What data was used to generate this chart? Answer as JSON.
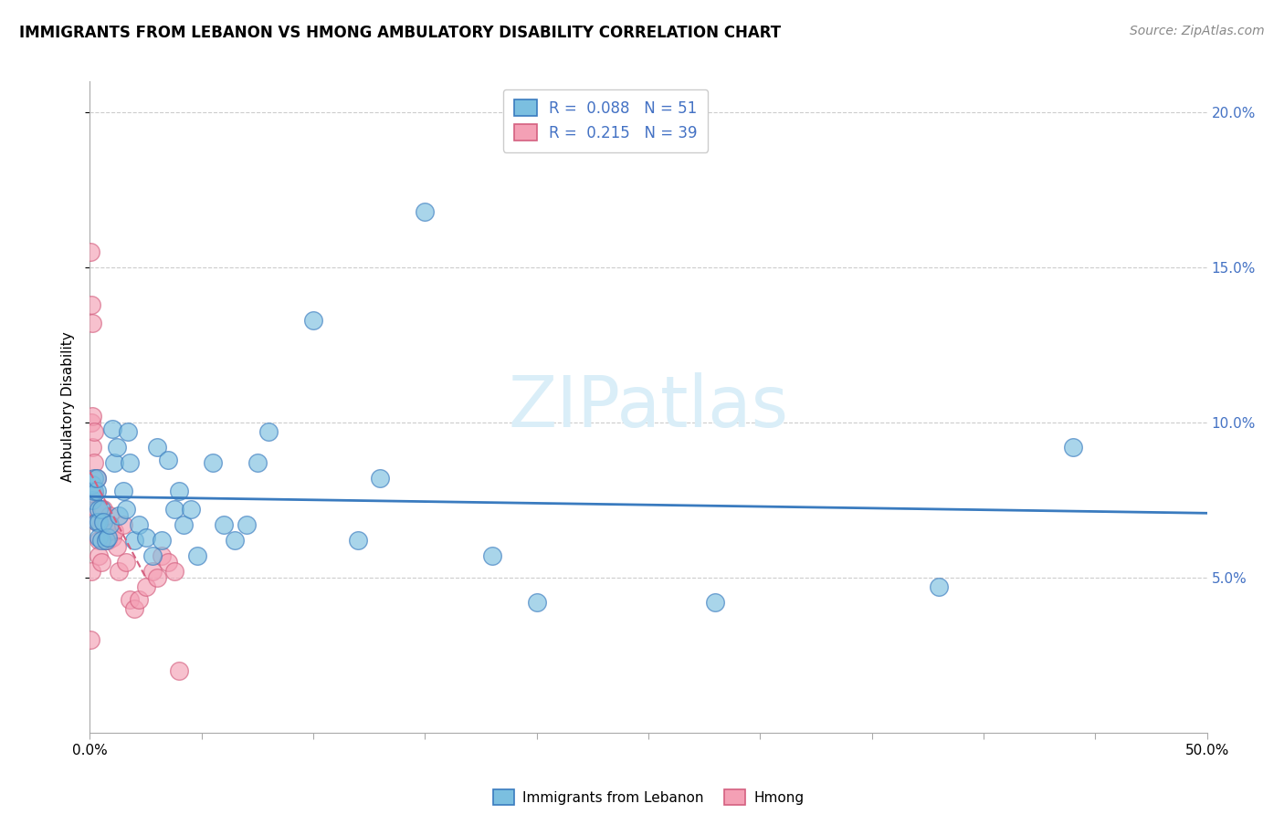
{
  "title": "IMMIGRANTS FROM LEBANON VS HMONG AMBULATORY DISABILITY CORRELATION CHART",
  "source": "Source: ZipAtlas.com",
  "ylabel": "Ambulatory Disability",
  "legend_labels": [
    "Immigrants from Lebanon",
    "Hmong"
  ],
  "legend_r": [
    0.088,
    0.215
  ],
  "legend_n": [
    51,
    39
  ],
  "xlim": [
    0.0,
    0.5
  ],
  "ylim": [
    0.0,
    0.21
  ],
  "xtick_major": [
    0.0,
    0.1,
    0.2,
    0.3,
    0.4,
    0.5
  ],
  "xtick_minor": [
    0.05,
    0.15,
    0.25,
    0.35,
    0.45
  ],
  "xtick_labeled": [
    0.0,
    0.5
  ],
  "xtick_label_vals": [
    "0.0%",
    "50.0%"
  ],
  "yticks": [
    0.05,
    0.1,
    0.15,
    0.2
  ],
  "ytick_labels_right": [
    "5.0%",
    "10.0%",
    "15.0%",
    "20.0%"
  ],
  "color_blue": "#7bbfe0",
  "color_pink": "#f4a0b5",
  "trendline_blue": "#3a7bbf",
  "trendline_pink": "#d46080",
  "watermark_color": "#daeef8",
  "blue_points_x": [
    0.001,
    0.001,
    0.002,
    0.002,
    0.003,
    0.003,
    0.003,
    0.004,
    0.004,
    0.004,
    0.005,
    0.005,
    0.006,
    0.007,
    0.008,
    0.009,
    0.01,
    0.011,
    0.012,
    0.013,
    0.015,
    0.016,
    0.017,
    0.018,
    0.02,
    0.022,
    0.025,
    0.028,
    0.03,
    0.032,
    0.035,
    0.038,
    0.04,
    0.042,
    0.045,
    0.048,
    0.055,
    0.06,
    0.065,
    0.07,
    0.075,
    0.08,
    0.1,
    0.12,
    0.13,
    0.15,
    0.18,
    0.2,
    0.28,
    0.38,
    0.44
  ],
  "blue_points_y": [
    0.075,
    0.08,
    0.078,
    0.082,
    0.068,
    0.078,
    0.082,
    0.072,
    0.068,
    0.063,
    0.062,
    0.072,
    0.068,
    0.062,
    0.063,
    0.067,
    0.098,
    0.087,
    0.092,
    0.07,
    0.078,
    0.072,
    0.097,
    0.087,
    0.062,
    0.067,
    0.063,
    0.057,
    0.092,
    0.062,
    0.088,
    0.072,
    0.078,
    0.067,
    0.072,
    0.057,
    0.087,
    0.067,
    0.062,
    0.067,
    0.087,
    0.097,
    0.133,
    0.062,
    0.082,
    0.168,
    0.057,
    0.042,
    0.042,
    0.047,
    0.092
  ],
  "pink_points_x": [
    0.0002,
    0.0003,
    0.0005,
    0.0005,
    0.0008,
    0.001,
    0.001,
    0.001,
    0.002,
    0.002,
    0.002,
    0.003,
    0.003,
    0.003,
    0.004,
    0.004,
    0.005,
    0.005,
    0.006,
    0.007,
    0.007,
    0.008,
    0.009,
    0.01,
    0.011,
    0.012,
    0.013,
    0.015,
    0.016,
    0.018,
    0.02,
    0.022,
    0.025,
    0.028,
    0.03,
    0.032,
    0.035,
    0.038,
    0.04
  ],
  "pink_points_y": [
    0.155,
    0.03,
    0.138,
    0.052,
    0.1,
    0.132,
    0.102,
    0.092,
    0.097,
    0.087,
    0.077,
    0.082,
    0.072,
    0.068,
    0.062,
    0.057,
    0.067,
    0.055,
    0.072,
    0.062,
    0.067,
    0.062,
    0.07,
    0.063,
    0.065,
    0.06,
    0.052,
    0.067,
    0.055,
    0.043,
    0.04,
    0.043,
    0.047,
    0.052,
    0.05,
    0.057,
    0.055,
    0.052,
    0.02
  ]
}
